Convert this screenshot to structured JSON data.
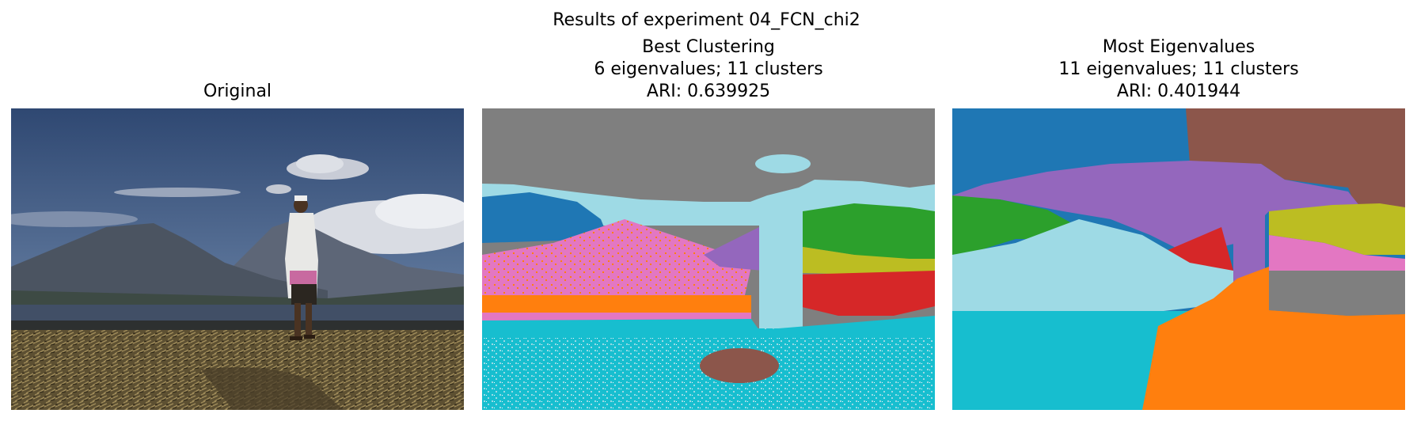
{
  "figure": {
    "suptitle": "Results of experiment 04_FCN_chi2"
  },
  "panels": [
    {
      "lines": [
        "Original"
      ]
    },
    {
      "lines": [
        "Best Clustering",
        "6 eigenvalues; 11 clusters",
        "ARI: 0.639925"
      ]
    },
    {
      "lines": [
        "Most Eigenvalues",
        "11 eigenvalues; 11 clusters",
        "ARI: 0.401944"
      ]
    }
  ],
  "colors": {
    "tab_blue": "#1f77b4",
    "tab_orange": "#ff7f0e",
    "tab_green": "#2ca02c",
    "tab_red": "#d62728",
    "tab_purple": "#9467bd",
    "tab_brown": "#8c564b",
    "tab_pink": "#e377c2",
    "tab_gray": "#7f7f7f",
    "tab_olive": "#bcbd22",
    "tab_cyan": "#17becf",
    "tab_light_cyan": "#9edae5"
  }
}
